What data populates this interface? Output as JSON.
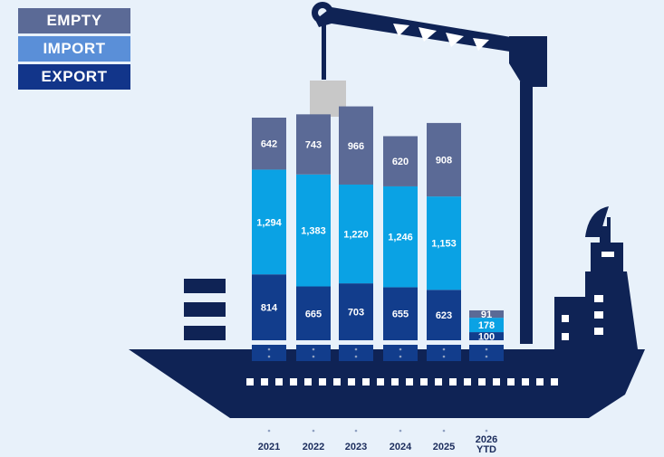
{
  "legend": [
    {
      "label": "EMPTY",
      "color": "#5b6a96"
    },
    {
      "label": "IMPORT",
      "color": "#5a8fd8"
    },
    {
      "label": "EXPORT",
      "color": "#12358a"
    }
  ],
  "chart_data": {
    "type": "bar",
    "stacked": true,
    "categories": [
      "2021",
      "2022",
      "2023",
      "2024",
      "2025",
      "2026 YTD"
    ],
    "series": [
      {
        "name": "EXPORT",
        "color": "#123d8c",
        "values": [
          814,
          665,
          703,
          655,
          623,
          100
        ],
        "labels": [
          "814",
          "665",
          "703",
          "655",
          "623",
          "100"
        ]
      },
      {
        "name": "IMPORT",
        "color": "#0aa2e4",
        "values": [
          1294,
          1383,
          1220,
          1246,
          1153,
          178
        ],
        "labels": [
          "1,294",
          "1,383",
          "1,220",
          "1,246",
          "1,153",
          "178"
        ]
      },
      {
        "name": "EMPTY",
        "color": "#5b6a96",
        "values": [
          642,
          743,
          966,
          620,
          908,
          91
        ],
        "labels": [
          "642",
          "743",
          "966",
          "620",
          "908",
          "91"
        ]
      }
    ],
    "ylim": [
      0,
      2900
    ],
    "grid": false,
    "legend_position": "top-left",
    "decoration": "container-ship-with-crane",
    "colors": {
      "ship": "#0f2355",
      "container": "#c8c8c8",
      "background": "#e8f1fa"
    }
  }
}
